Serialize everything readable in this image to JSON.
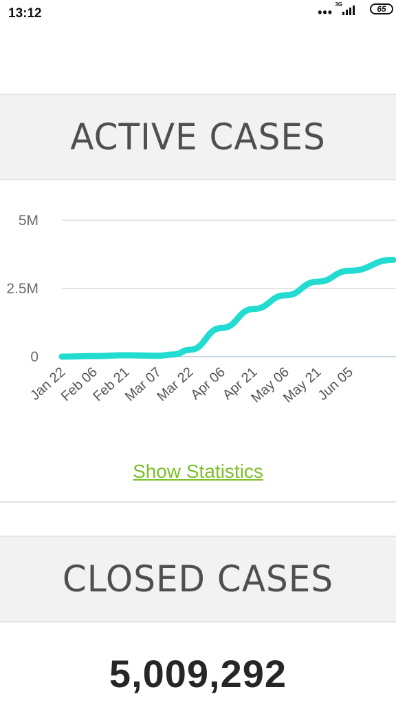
{
  "status_bar": {
    "time": "13:12",
    "dots": "•••",
    "network": "3G",
    "battery": "65",
    "icons": [
      "more-dots-icon",
      "signal-icon",
      "battery-icon"
    ]
  },
  "active_section": {
    "title": "ACTIVE CASES"
  },
  "chart_data": {
    "type": "area",
    "series": [
      {
        "color": "#22dcd2",
        "points": [
          [
            "Jan 22",
            0.0
          ],
          [
            "Feb 06",
            0.02
          ],
          [
            "Feb 21",
            0.05
          ],
          [
            "Mar 07",
            0.03
          ],
          [
            "Mar 15",
            0.08
          ],
          [
            "Mar 22",
            0.25
          ],
          [
            "Apr 06",
            1.05
          ],
          [
            "Apr 21",
            1.75
          ],
          [
            "May 06",
            2.25
          ],
          [
            "May 21",
            2.75
          ],
          [
            "Jun 05",
            3.15
          ],
          [
            "Jun 15",
            3.55
          ]
        ]
      }
    ],
    "x_tick_labels": [
      "Jan 22",
      "Feb 06",
      "Feb 21",
      "Mar 07",
      "Mar 22",
      "Apr 06",
      "Apr 21",
      "May 06",
      "May 21",
      "Jun 05"
    ],
    "y_tick_labels": [
      "5M",
      "2.5M",
      "0"
    ],
    "y_ticks": [
      5,
      2.5,
      0
    ],
    "ylim": [
      0,
      5
    ],
    "y_unit": "M",
    "grid": true,
    "legend": "none"
  },
  "show_statistics": {
    "label": "Show Statistics",
    "color": "#7cbf2a"
  },
  "closed_section": {
    "title": "CLOSED CASES",
    "total": "5,009,292"
  }
}
